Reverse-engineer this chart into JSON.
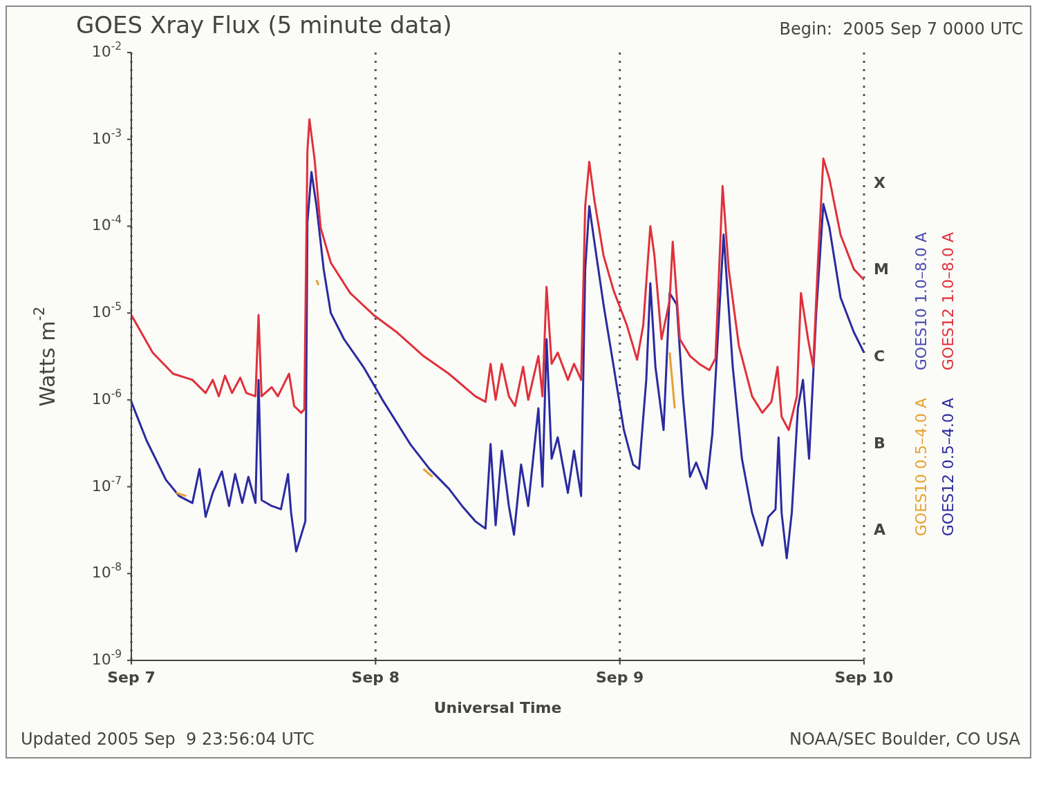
{
  "chart_data": {
    "type": "line",
    "title": "GOES Xray Flux (5 minute data)",
    "subtitle": "Begin:  2005 Sep 7 0000 UTC",
    "xlabel": "Universal Time",
    "ylabel": "Watts m$^{-2}$",
    "annotations": [
      "Updated 2005 Sep  9 23:56:04 UTC",
      "NOAA/SEC Boulder, CO USA",
      "A",
      "B",
      "C",
      "M",
      "X"
    ],
    "log": "y",
    "grid": true,
    "legend": "right",
    "marker": "none",
    "xlim": [
      "2005-09-07",
      "2005-09-10"
    ],
    "xticks": [
      {
        "value": "2005-09-07",
        "label": "Sep 7"
      },
      {
        "value": "2005-09-08",
        "label": "Sep 8"
      },
      {
        "value": "2005-09-09",
        "label": "Sep 9"
      },
      {
        "value": "2005-09-10",
        "label": "Sep 10"
      }
    ],
    "ylim": [
      1e-09,
      0.01
    ],
    "yticks": [
      {
        "value": 1e-09,
        "label": "10$^{-9}$"
      },
      {
        "value": 1e-08,
        "label": "10$^{-8}$"
      },
      {
        "value": 1e-07,
        "label": "10$^{-7}$"
      },
      {
        "value": 1e-06,
        "label": "10$^{-6}$"
      },
      {
        "value": 1e-05,
        "label": "10$^{-5}$"
      },
      {
        "value": 0.0001,
        "label": "10$^{-4}$"
      },
      {
        "value": 0.001,
        "label": "10$^{-3}$"
      },
      {
        "value": 0.01,
        "label": "10$^{-2}$"
      }
    ],
    "series": [
      {
        "name": "GOES10 1.0–8.0 A",
        "color": "#4a4ab0"
      },
      {
        "name": "GOES12 1.0–8.0 A",
        "color": "#e0303a",
        "x": [
          "2005-09-07T00:00",
          "2005-09-07T02:06",
          "2005-09-07T04:06",
          "2005-09-07T06:00",
          "2005-09-07T07:18",
          "2005-09-07T08:00",
          "2005-09-07T08:36",
          "2005-09-07T09:12",
          "2005-09-07T09:54",
          "2005-09-07T10:42",
          "2005-09-07T11:18",
          "2005-09-07T12:12",
          "2005-09-07T12:30",
          "2005-09-07T12:48",
          "2005-09-07T13:48",
          "2005-09-07T14:24",
          "2005-09-07T15:30",
          "2005-09-07T16:00",
          "2005-09-07T16:42",
          "2005-09-07T17:00",
          "2005-09-07T17:18",
          "2005-09-07T17:30",
          "2005-09-07T18:00",
          "2005-09-07T18:36",
          "2005-09-07T19:36",
          "2005-09-07T21:30",
          "2005-09-07T23:48",
          "2005-09-08T02:06",
          "2005-09-08T04:42",
          "2005-09-08T07:12",
          "2005-09-08T09:48",
          "2005-09-08T10:48",
          "2005-09-08T11:18",
          "2005-09-08T11:48",
          "2005-09-08T12:24",
          "2005-09-08T13:06",
          "2005-09-08T13:42",
          "2005-09-08T14:30",
          "2005-09-08T15:00",
          "2005-09-08T16:00",
          "2005-09-08T16:24",
          "2005-09-08T16:48",
          "2005-09-08T17:18",
          "2005-09-08T17:54",
          "2005-09-08T18:54",
          "2005-09-08T19:30",
          "2005-09-08T20:12",
          "2005-09-08T20:36",
          "2005-09-08T21:00",
          "2005-09-08T21:30",
          "2005-09-08T22:24",
          "2005-09-08T23:24",
          "2005-09-09T00:42",
          "2005-09-09T01:42",
          "2005-09-09T02:18",
          "2005-09-09T03:00",
          "2005-09-09T03:24",
          "2005-09-09T04:06",
          "2005-09-09T04:54",
          "2005-09-09T05:12",
          "2005-09-09T05:54",
          "2005-09-09T06:54",
          "2005-09-09T07:48",
          "2005-09-09T08:48",
          "2005-09-09T09:24",
          "2005-09-09T10:06",
          "2005-09-09T10:42",
          "2005-09-09T11:42",
          "2005-09-09T13:00",
          "2005-09-09T14:00",
          "2005-09-09T14:54",
          "2005-09-09T15:30",
          "2005-09-09T15:54",
          "2005-09-09T16:36",
          "2005-09-09T17:24",
          "2005-09-09T17:48",
          "2005-09-09T18:30",
          "2005-09-09T19:00",
          "2005-09-09T19:30",
          "2005-09-09T20:00",
          "2005-09-09T20:36",
          "2005-09-09T21:42",
          "2005-09-09T23:00",
          "2005-09-10T00:00"
        ],
        "values": [
          9.5e-06,
          3.5e-06,
          2e-06,
          1.7e-06,
          1.2e-06,
          1.7e-06,
          1.1e-06,
          1.9e-06,
          1.2e-06,
          1.8e-06,
          1.2e-06,
          1.1e-06,
          9.5e-06,
          1.1e-06,
          1.4e-06,
          1.1e-06,
          2e-06,
          8.5e-07,
          7.1e-07,
          7.8e-07,
          0.00073,
          0.0017,
          0.0006,
          9.6e-05,
          3.8e-05,
          1.7e-05,
          9.5e-06,
          6e-06,
          3.2e-06,
          2e-06,
          1.1e-06,
          9.5e-07,
          2.6e-06,
          1e-06,
          2.6e-06,
          1.1e-06,
          8.5e-07,
          2.4e-06,
          1e-06,
          3.2e-06,
          1.1e-06,
          2e-05,
          2.6e-06,
          3.5e-06,
          1.7e-06,
          2.6e-06,
          1.7e-06,
          0.00017,
          0.00055,
          0.0002,
          4.6e-05,
          1.8e-05,
          7.2e-06,
          2.9e-06,
          7.2e-06,
          0.0001,
          4.6e-05,
          5e-06,
          1.4e-05,
          6.6e-05,
          5e-06,
          3.2e-06,
          2.6e-06,
          2.2e-06,
          3e-06,
          0.00029,
          3.2e-05,
          4.2e-06,
          1.1e-06,
          7.1e-07,
          9.5e-07,
          2.4e-06,
          6.4e-07,
          4.5e-07,
          1.1e-06,
          1.7e-05,
          5e-06,
          2.4e-06,
          4.6e-05,
          0.0006,
          0.00035,
          7.9e-05,
          3.2e-05,
          2.4e-05
        ]
      },
      {
        "name": "GOES10 0.5–4.0 A",
        "color": "#e8a030",
        "x": [
          "2005-09-07T04:24",
          "2005-09-07T05:24",
          "2005-09-07T05:30",
          "2005-09-07T18:12",
          "2005-09-07T18:24",
          "2005-09-07T18:30",
          "2005-09-08T04:42",
          "2005-09-08T05:36",
          "2005-09-08T05:42",
          "2005-09-09T04:54",
          "2005-09-09T05:24"
        ],
        "values": [
          8.5e-08,
          7.8e-08,
          null,
          2.4e-05,
          2.1e-05,
          null,
          1.6e-07,
          1.3e-07,
          null,
          3.5e-06,
          8e-07
        ]
      },
      {
        "name": "GOES12 0.5–4.0 A",
        "color": "#2a2aa0",
        "x": [
          "2005-09-07T00:00",
          "2005-09-07T01:30",
          "2005-09-07T03:24",
          "2005-09-07T04:42",
          "2005-09-07T06:00",
          "2005-09-07T06:42",
          "2005-09-07T07:18",
          "2005-09-07T08:00",
          "2005-09-07T08:54",
          "2005-09-07T09:36",
          "2005-09-07T10:12",
          "2005-09-07T10:54",
          "2005-09-07T11:30",
          "2005-09-07T12:12",
          "2005-09-07T12:30",
          "2005-09-07T12:48",
          "2005-09-07T13:48",
          "2005-09-07T14:42",
          "2005-09-07T15:24",
          "2005-09-07T15:42",
          "2005-09-07T16:12",
          "2005-09-07T16:42",
          "2005-09-07T17:06",
          "2005-09-07T17:18",
          "2005-09-07T17:42",
          "2005-09-07T18:12",
          "2005-09-07T18:54",
          "2005-09-07T19:36",
          "2005-09-07T20:54",
          "2005-09-07T22:48",
          "2005-09-08T00:48",
          "2005-09-08T03:24",
          "2005-09-08T05:18",
          "2005-09-08T07:12",
          "2005-09-08T08:30",
          "2005-09-08T09:48",
          "2005-09-08T10:48",
          "2005-09-08T11:18",
          "2005-09-08T11:48",
          "2005-09-08T12:24",
          "2005-09-08T13:06",
          "2005-09-08T13:36",
          "2005-09-08T14:18",
          "2005-09-08T15:00",
          "2005-09-08T16:00",
          "2005-09-08T16:24",
          "2005-09-08T16:48",
          "2005-09-08T17:18",
          "2005-09-08T17:54",
          "2005-09-08T18:54",
          "2005-09-08T19:30",
          "2005-09-08T20:12",
          "2005-09-08T20:36",
          "2005-09-08T21:00",
          "2005-09-08T21:30",
          "2005-09-08T22:24",
          "2005-09-08T23:24",
          "2005-09-09T00:24",
          "2005-09-09T01:18",
          "2005-09-09T01:54",
          "2005-09-09T02:36",
          "2005-09-09T03:00",
          "2005-09-09T03:30",
          "2005-09-09T04:18",
          "2005-09-09T04:54",
          "2005-09-09T05:36",
          "2005-09-09T06:12",
          "2005-09-09T06:54",
          "2005-09-09T07:30",
          "2005-09-09T08:30",
          "2005-09-09T09:06",
          "2005-09-09T10:12",
          "2005-09-09T11:06",
          "2005-09-09T12:00",
          "2005-09-09T13:00",
          "2005-09-09T14:00",
          "2005-09-09T14:36",
          "2005-09-09T15:18",
          "2005-09-09T15:36",
          "2005-09-09T15:54",
          "2005-09-09T16:24",
          "2005-09-09T16:54",
          "2005-09-09T17:30",
          "2005-09-09T18:00",
          "2005-09-09T18:36",
          "2005-09-09T19:18",
          "2005-09-09T20:00",
          "2005-09-09T20:36",
          "2005-09-09T21:42",
          "2005-09-09T23:00",
          "2005-09-10T00:00"
        ],
        "values": [
          9.5e-07,
          3.4e-07,
          1.2e-07,
          7.8e-08,
          6.5e-08,
          1.6e-07,
          4.5e-08,
          8.5e-08,
          1.5e-07,
          6e-08,
          1.4e-07,
          6.5e-08,
          1.3e-07,
          6.5e-08,
          1.7e-06,
          7e-08,
          6e-08,
          5.5e-08,
          1.4e-07,
          5e-08,
          1.8e-08,
          2.8e-08,
          4e-08,
          0.00011,
          0.00042,
          0.00017,
          3.2e-05,
          1e-05,
          5e-06,
          2.4e-06,
          9.5e-07,
          3.1e-07,
          1.6e-07,
          9.5e-08,
          6e-08,
          4e-08,
          3.3e-08,
          3.1e-07,
          3.6e-08,
          2.6e-07,
          6e-08,
          2.8e-08,
          1.8e-07,
          6e-08,
          8e-07,
          1e-07,
          5e-06,
          2.1e-07,
          3.7e-07,
          8.5e-08,
          2.6e-07,
          7.8e-08,
          3.2e-05,
          0.00017,
          6.6e-05,
          1.25e-05,
          2.4e-06,
          4.5e-07,
          1.8e-07,
          1.6e-07,
          1.7e-06,
          2.2e-05,
          2.4e-06,
          4.5e-07,
          1.7e-05,
          1.25e-05,
          1.1e-06,
          1.3e-07,
          1.9e-07,
          9.5e-08,
          4.1e-07,
          8e-05,
          2.4e-06,
          2.1e-07,
          5e-08,
          2.1e-08,
          4.5e-08,
          5.5e-08,
          3.7e-07,
          5e-08,
          1.5e-08,
          5e-08,
          8e-07,
          1.7e-06,
          2.1e-07,
          1e-05,
          0.00018,
          9.6e-05,
          1.5e-05,
          6e-06,
          3.5e-06
        ]
      }
    ]
  }
}
